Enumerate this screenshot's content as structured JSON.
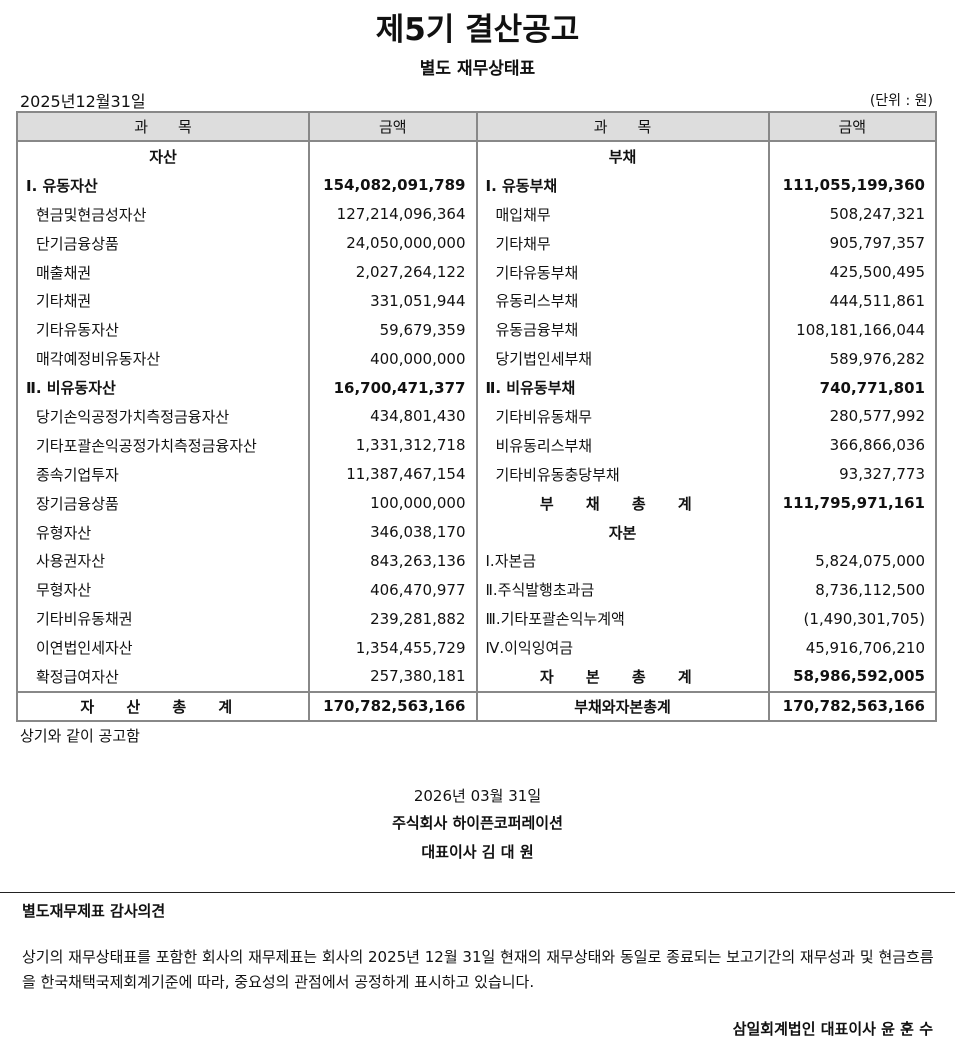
{
  "title": "제5기 결산공고",
  "subtitle": "별도 재무상태표",
  "date": "2025년12월31일",
  "unit": "(단위 : 원)",
  "headers": [
    "과　　목",
    "금액",
    "과　　목",
    "금액"
  ],
  "rows": [
    {
      "l": "자산",
      "la": "",
      "ls": "center",
      "r": "부채",
      "ra": "",
      "rs": "center"
    },
    {
      "l": "Ⅰ. 유동자산",
      "la": "154,082,091,789",
      "ls": "bold",
      "r": "Ⅰ. 유동부채",
      "ra": "111,055,199,360",
      "rs": "bold"
    },
    {
      "l": "현금및현금성자산",
      "la": "127,214,096,364",
      "ls": "ind",
      "r": "매입채무",
      "ra": "508,247,321",
      "rs": "ind"
    },
    {
      "l": "단기금융상품",
      "la": "24,050,000,000",
      "ls": "ind",
      "r": "기타채무",
      "ra": "905,797,357",
      "rs": "ind"
    },
    {
      "l": "매출채권",
      "la": "2,027,264,122",
      "ls": "ind",
      "r": "기타유동부채",
      "ra": "425,500,495",
      "rs": "ind"
    },
    {
      "l": "기타채권",
      "la": "331,051,944",
      "ls": "ind",
      "r": "유동리스부채",
      "ra": "444,511,861",
      "rs": "ind"
    },
    {
      "l": "기타유동자산",
      "la": "59,679,359",
      "ls": "ind",
      "r": "유동금융부채",
      "ra": "108,181,166,044",
      "rs": "ind"
    },
    {
      "l": "매각예정비유동자산",
      "la": "400,000,000",
      "ls": "ind",
      "r": "당기법인세부채",
      "ra": "589,976,282",
      "rs": "ind"
    },
    {
      "l": "Ⅱ. 비유동자산",
      "la": "16,700,471,377",
      "ls": "bold",
      "r": "Ⅱ. 비유동부채",
      "ra": "740,771,801",
      "rs": "bold"
    },
    {
      "l": "당기손익공정가치측정금융자산",
      "la": "434,801,430",
      "ls": "ind",
      "r": "기타비유동채무",
      "ra": "280,577,992",
      "rs": "ind"
    },
    {
      "l": "기타포괄손익공정가치측정금융자산",
      "la": "1,331,312,718",
      "ls": "ind",
      "r": "비유동리스부채",
      "ra": "366,866,036",
      "rs": "ind"
    },
    {
      "l": "종속기업투자",
      "la": "11,387,467,154",
      "ls": "ind",
      "r": "기타비유동충당부채",
      "ra": "93,327,773",
      "rs": "ind"
    },
    {
      "l": "장기금융상품",
      "la": "100,000,000",
      "ls": "ind",
      "r": "부 채 총 계",
      "ra": "111,795,971,161",
      "rs": "total"
    },
    {
      "l": "유형자산",
      "la": "346,038,170",
      "ls": "ind",
      "r": "자본",
      "ra": "",
      "rs": "center"
    },
    {
      "l": "사용권자산",
      "la": "843,263,136",
      "ls": "ind",
      "r": "Ⅰ.자본금",
      "ra": "5,824,075,000",
      "rs": "ln"
    },
    {
      "l": "무형자산",
      "la": "406,470,977",
      "ls": "ind",
      "r": "Ⅱ.주식발행초과금",
      "ra": "8,736,112,500",
      "rs": "ln"
    },
    {
      "l": "기타비유동채권",
      "la": "239,281,882",
      "ls": "ind",
      "r": "Ⅲ.기타포괄손익누계액",
      "ra": "(1,490,301,705)",
      "rs": "ln"
    },
    {
      "l": "이연법인세자산",
      "la": "1,354,455,729",
      "ls": "ind",
      "r": "Ⅳ.이익잉여금",
      "ra": "45,916,706,210",
      "rs": "ln"
    },
    {
      "l": "확정급여자산",
      "la": "257,380,181",
      "ls": "ind",
      "r": "자 본 총 계",
      "ra": "58,986,592,005",
      "rs": "total"
    }
  ],
  "totals": {
    "l": "자 산 총 계",
    "la": "170,782,563,166",
    "r": "부채와자본총계",
    "ra": "170,782,563,166"
  },
  "note": "상기와 같이 공고함",
  "pub_date": "2026년 03월 31일",
  "company": "주식회사 하이픈코퍼레이션",
  "ceo": "대표이사 김 대 원",
  "audit": {
    "title": "별도재무제표 감사의견",
    "text": "상기의 재무상태표를 포함한 회사의 재무제표는 회사의 2025년 12월 31일 현재의 재무상태와 동일로 종료되는 보고기간의 재무성과 및 현금흐름을 한국채택국제회계기준에 따라, 중요성의 관점에서 공정하게 표시하고 있습니다.",
    "auditor": "삼일회계법인 대표이사 윤 훈 수"
  }
}
